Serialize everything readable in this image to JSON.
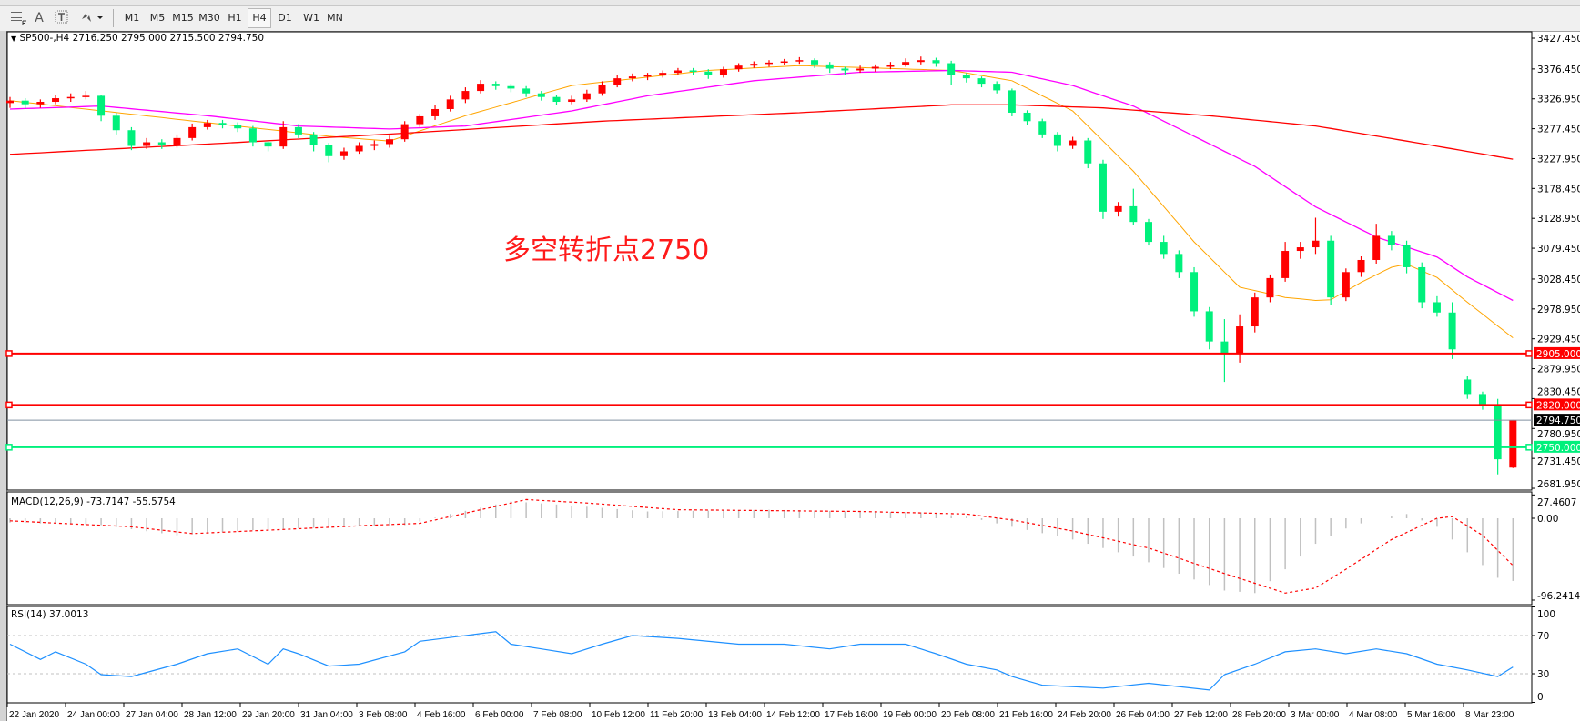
{
  "toolbar": {
    "icons": [
      "grid-icon",
      "text-icon",
      "text-label-icon",
      "arrows-icon"
    ],
    "text_tool": "A",
    "timeframes": [
      "M1",
      "M5",
      "M15",
      "M30",
      "H1",
      "H4",
      "D1",
      "W1",
      "MN"
    ],
    "active_timeframe": "H4"
  },
  "chart": {
    "header": "SP500-,H4  2716.250 2795.000 2715.500 2794.750",
    "annotation": "多空转折点2750",
    "annotation_color": "#ff1a1a",
    "bull_color": "#ff0000",
    "bear_color": "#00f07c",
    "price_axis": [
      "3427.450",
      "3376.450",
      "3326.950",
      "3277.450",
      "3227.950",
      "3178.450",
      "3128.950",
      "3079.450",
      "3028.450",
      "2978.950",
      "2929.450",
      "2879.950",
      "2830.450",
      "2780.950",
      "2731.450",
      "2681.950"
    ],
    "levels": [
      {
        "price": 2905.0,
        "label": "2905.000",
        "color": "#ff0000"
      },
      {
        "price": 2820.0,
        "label": "2820.000",
        "color": "#ff0000"
      },
      {
        "price": 2794.75,
        "label": "2794.750",
        "color": "#000000",
        "line_color": "#8090a0"
      },
      {
        "price": 2750.0,
        "label": "2750.000",
        "color": "#00f07c"
      }
    ],
    "time_axis": [
      "22 Jan 2020",
      "24 Jan 00:00",
      "27 Jan 04:00",
      "28 Jan 12:00",
      "29 Jan 20:00",
      "31 Jan 04:00",
      "3 Feb 08:00",
      "4 Feb 16:00",
      "6 Feb 00:00",
      "7 Feb 08:00",
      "10 Feb 12:00",
      "11 Feb 20:00",
      "13 Feb 04:00",
      "14 Feb 12:00",
      "17 Feb 16:00",
      "19 Feb 00:00",
      "20 Feb 08:00",
      "21 Feb 16:00",
      "24 Feb 20:00",
      "26 Feb 04:00",
      "27 Feb 12:00",
      "28 Feb 20:00",
      "3 Mar 00:00",
      "4 Mar 08:00",
      "5 Mar 16:00",
      "8 Mar 23:00"
    ]
  },
  "macd": {
    "label": "MACD(12,26,9) -73.7147 -55.5754",
    "axis": [
      "27.4607",
      "0.00",
      "-96.2414"
    ]
  },
  "rsi": {
    "label": "RSI(14) 37.0013",
    "axis": [
      "100",
      "70",
      "30",
      "0"
    ]
  },
  "chart_data": [
    {
      "type": "candlestick",
      "title": "SP500-,H4",
      "ylim": [
        2681.95,
        3427.45
      ],
      "ohlc": [
        [
          3320,
          3330,
          3312,
          3324
        ],
        [
          3324,
          3328,
          3310,
          3318
        ],
        [
          3318,
          3326,
          3312,
          3322
        ],
        [
          3322,
          3334,
          3318,
          3328
        ],
        [
          3328,
          3336,
          3322,
          3330
        ],
        [
          3330,
          3340,
          3326,
          3332
        ],
        [
          3332,
          3334,
          3290,
          3299
        ],
        [
          3299,
          3304,
          3268,
          3275
        ],
        [
          3275,
          3280,
          3242,
          3249
        ],
        [
          3249,
          3262,
          3244,
          3255
        ],
        [
          3255,
          3260,
          3244,
          3250
        ],
        [
          3250,
          3268,
          3246,
          3262
        ],
        [
          3262,
          3286,
          3258,
          3280
        ],
        [
          3280,
          3292,
          3276,
          3287
        ],
        [
          3287,
          3292,
          3278,
          3284
        ],
        [
          3284,
          3288,
          3272,
          3278
        ],
        [
          3278,
          3282,
          3248,
          3255
        ],
        [
          3255,
          3258,
          3240,
          3248
        ],
        [
          3248,
          3290,
          3244,
          3280
        ],
        [
          3280,
          3285,
          3262,
          3268
        ],
        [
          3268,
          3272,
          3240,
          3250
        ],
        [
          3250,
          3254,
          3222,
          3232
        ],
        [
          3232,
          3246,
          3226,
          3240
        ],
        [
          3240,
          3255,
          3236,
          3249
        ],
        [
          3249,
          3258,
          3242,
          3252
        ],
        [
          3252,
          3266,
          3246,
          3260
        ],
        [
          3260,
          3290,
          3256,
          3285
        ],
        [
          3285,
          3302,
          3280,
          3298
        ],
        [
          3298,
          3316,
          3292,
          3310
        ],
        [
          3310,
          3332,
          3306,
          3326
        ],
        [
          3326,
          3346,
          3320,
          3340
        ],
        [
          3340,
          3358,
          3336,
          3352
        ],
        [
          3352,
          3356,
          3342,
          3348
        ],
        [
          3348,
          3352,
          3338,
          3344
        ],
        [
          3344,
          3348,
          3330,
          3336
        ],
        [
          3336,
          3340,
          3324,
          3330
        ],
        [
          3330,
          3334,
          3316,
          3322
        ],
        [
          3322,
          3332,
          3318,
          3326
        ],
        [
          3326,
          3342,
          3322,
          3336
        ],
        [
          3336,
          3356,
          3332,
          3350
        ],
        [
          3350,
          3366,
          3346,
          3361
        ],
        [
          3361,
          3369,
          3356,
          3364
        ],
        [
          3364,
          3370,
          3358,
          3366
        ],
        [
          3366,
          3374,
          3362,
          3370
        ],
        [
          3370,
          3378,
          3366,
          3374
        ],
        [
          3374,
          3378,
          3366,
          3372
        ],
        [
          3372,
          3376,
          3360,
          3366
        ],
        [
          3366,
          3380,
          3362,
          3376
        ],
        [
          3376,
          3386,
          3372,
          3382
        ],
        [
          3382,
          3389,
          3378,
          3385
        ],
        [
          3385,
          3391,
          3380,
          3387
        ],
        [
          3387,
          3393,
          3383,
          3389
        ],
        [
          3389,
          3396,
          3385,
          3391
        ],
        [
          3391,
          3394,
          3378,
          3384
        ],
        [
          3384,
          3388,
          3370,
          3377
        ],
        [
          3377,
          3380,
          3366,
          3374
        ],
        [
          3374,
          3382,
          3370,
          3377
        ],
        [
          3377,
          3384,
          3372,
          3380
        ],
        [
          3380,
          3388,
          3376,
          3383
        ],
        [
          3383,
          3394,
          3380,
          3388
        ],
        [
          3388,
          3397,
          3384,
          3391
        ],
        [
          3391,
          3395,
          3380,
          3386
        ],
        [
          3386,
          3390,
          3350,
          3366
        ],
        [
          3366,
          3370,
          3354,
          3361
        ],
        [
          3361,
          3364,
          3346,
          3352
        ],
        [
          3352,
          3356,
          3336,
          3341
        ],
        [
          3341,
          3344,
          3298,
          3304
        ],
        [
          3304,
          3308,
          3284,
          3290
        ],
        [
          3290,
          3294,
          3262,
          3268
        ],
        [
          3268,
          3272,
          3240,
          3249
        ],
        [
          3249,
          3264,
          3244,
          3258
        ],
        [
          3258,
          3262,
          3212,
          3220
        ],
        [
          3220,
          3226,
          3128,
          3140
        ],
        [
          3140,
          3156,
          3132,
          3149
        ],
        [
          3149,
          3178,
          3118,
          3123
        ],
        [
          3123,
          3128,
          3084,
          3090
        ],
        [
          3090,
          3100,
          3062,
          3070
        ],
        [
          3070,
          3076,
          3030,
          3040
        ],
        [
          3040,
          3048,
          2966,
          2975
        ],
        [
          2975,
          2982,
          2912,
          2925
        ],
        [
          2925,
          2962,
          2858,
          2906
        ],
        [
          2906,
          2970,
          2890,
          2950
        ],
        [
          2950,
          3006,
          2940,
          2998
        ],
        [
          2998,
          3036,
          2990,
          3030
        ],
        [
          3030,
          3090,
          3024,
          3075
        ],
        [
          3075,
          3090,
          3062,
          3081
        ],
        [
          3081,
          3130,
          3070,
          3092
        ],
        [
          3092,
          3100,
          2985,
          2998
        ],
        [
          2998,
          3046,
          2992,
          3040
        ],
        [
          3040,
          3066,
          3032,
          3060
        ],
        [
          3060,
          3120,
          3054,
          3100
        ],
        [
          3100,
          3108,
          3076,
          3085
        ],
        [
          3085,
          3092,
          3038,
          3048
        ],
        [
          3048,
          3056,
          2980,
          2990
        ],
        [
          2990,
          3000,
          2966,
          2973
        ],
        [
          2973,
          2990,
          2896,
          2912
        ],
        [
          2862,
          2868,
          2830,
          2838
        ],
        [
          2838,
          2842,
          2812,
          2820
        ],
        [
          2820,
          2830,
          2705,
          2730
        ],
        [
          2716.25,
          2795,
          2715.5,
          2794.75
        ]
      ],
      "moving_averages": [
        {
          "color": "#ffa500",
          "points": [
            [
              0,
              3324
            ],
            [
              21,
              3265
            ],
            [
              25,
              3257
            ],
            [
              30,
              3299
            ],
            [
              37,
              3349
            ],
            [
              46,
              3374
            ],
            [
              52,
              3382
            ],
            [
              62,
              3374
            ],
            [
              66,
              3357
            ],
            [
              70,
              3307
            ],
            [
              74,
              3207
            ],
            [
              78,
              3090
            ],
            [
              81,
              3015
            ],
            [
              84,
              2998
            ],
            [
              86,
              2993
            ],
            [
              87,
              2994
            ],
            [
              89,
              3023
            ],
            [
              91,
              3048
            ],
            [
              92,
              3053
            ],
            [
              94,
              3031
            ],
            [
              96,
              2990
            ],
            [
              99,
              2931
            ]
          ]
        },
        {
          "color": "#ff00ff",
          "points": [
            [
              0,
              3310
            ],
            [
              6,
              3315
            ],
            [
              13,
              3299
            ],
            [
              19,
              3282
            ],
            [
              25,
              3277
            ],
            [
              30,
              3282
            ],
            [
              37,
              3307
            ],
            [
              42,
              3332
            ],
            [
              49,
              3357
            ],
            [
              56,
              3371
            ],
            [
              62,
              3374
            ],
            [
              66,
              3371
            ],
            [
              70,
              3349
            ],
            [
              74,
              3315
            ],
            [
              78,
              3265
            ],
            [
              82,
              3215
            ],
            [
              86,
              3148
            ],
            [
              90,
              3098
            ],
            [
              94,
              3065
            ],
            [
              96,
              3032
            ],
            [
              99,
              2993
            ]
          ]
        },
        {
          "color": "#ff0000",
          "points": [
            [
              0,
              3235
            ],
            [
              13,
              3252
            ],
            [
              26,
              3270
            ],
            [
              39,
              3290
            ],
            [
              52,
              3304
            ],
            [
              62,
              3317
            ],
            [
              66,
              3317
            ],
            [
              72,
              3312
            ],
            [
              79,
              3299
            ],
            [
              86,
              3282
            ],
            [
              92,
              3257
            ],
            [
              99,
              3227
            ]
          ]
        }
      ]
    },
    {
      "type": "bar",
      "title": "MACD(12,26,9)",
      "ylim": [
        -96.2414,
        27.4607
      ],
      "histogram_points": [
        [
          0,
          -5
        ],
        [
          6,
          -8
        ],
        [
          11,
          -20
        ],
        [
          16,
          -14
        ],
        [
          22,
          -10
        ],
        [
          26,
          -8
        ],
        [
          29,
          5
        ],
        [
          33,
          20
        ],
        [
          37,
          15
        ],
        [
          42,
          8
        ],
        [
          50,
          10
        ],
        [
          56,
          8
        ],
        [
          60,
          7
        ],
        [
          63,
          2
        ],
        [
          66,
          -10
        ],
        [
          70,
          -25
        ],
        [
          74,
          -45
        ],
        [
          78,
          -72
        ],
        [
          80,
          -85
        ],
        [
          82,
          -88
        ],
        [
          84,
          -60
        ],
        [
          86,
          -30
        ],
        [
          88,
          -12
        ],
        [
          90,
          0
        ],
        [
          92,
          5
        ],
        [
          94,
          -10
        ],
        [
          96,
          -40
        ],
        [
          98,
          -70
        ],
        [
          99,
          -73.7147
        ]
      ],
      "signal_points": [
        [
          0,
          -3
        ],
        [
          8,
          -10
        ],
        [
          12,
          -18
        ],
        [
          17,
          -14
        ],
        [
          24,
          -8
        ],
        [
          27,
          -6
        ],
        [
          31,
          10
        ],
        [
          34,
          22
        ],
        [
          38,
          18
        ],
        [
          44,
          10
        ],
        [
          56,
          8
        ],
        [
          63,
          5
        ],
        [
          66,
          -2
        ],
        [
          70,
          -15
        ],
        [
          75,
          -35
        ],
        [
          80,
          -65
        ],
        [
          84,
          -88
        ],
        [
          86,
          -82
        ],
        [
          88,
          -60
        ],
        [
          91,
          -25
        ],
        [
          94,
          0
        ],
        [
          95,
          2
        ],
        [
          97,
          -20
        ],
        [
          99,
          -55.5754
        ]
      ]
    },
    {
      "type": "line",
      "title": "RSI(14)",
      "ylim": [
        0,
        100
      ],
      "levels": [
        70,
        30
      ],
      "points": [
        [
          0,
          61
        ],
        [
          2,
          45
        ],
        [
          3,
          53
        ],
        [
          5,
          40
        ],
        [
          6,
          29
        ],
        [
          8,
          27
        ],
        [
          11,
          40
        ],
        [
          13,
          51
        ],
        [
          15,
          56
        ],
        [
          17,
          40
        ],
        [
          18,
          56
        ],
        [
          19,
          51
        ],
        [
          21,
          38
        ],
        [
          23,
          40
        ],
        [
          26,
          53
        ],
        [
          27,
          64
        ],
        [
          31,
          72
        ],
        [
          32,
          74
        ],
        [
          33,
          61
        ],
        [
          35,
          56
        ],
        [
          37,
          51
        ],
        [
          39,
          61
        ],
        [
          41,
          70
        ],
        [
          44,
          67
        ],
        [
          48,
          61
        ],
        [
          51,
          61
        ],
        [
          54,
          56
        ],
        [
          56,
          61
        ],
        [
          59,
          61
        ],
        [
          61,
          51
        ],
        [
          63,
          40
        ],
        [
          65,
          34
        ],
        [
          66,
          27
        ],
        [
          68,
          18
        ],
        [
          72,
          15
        ],
        [
          75,
          20
        ],
        [
          79,
          13
        ],
        [
          80,
          29
        ],
        [
          82,
          40
        ],
        [
          84,
          53
        ],
        [
          86,
          56
        ],
        [
          88,
          51
        ],
        [
          90,
          56
        ],
        [
          92,
          51
        ],
        [
          94,
          40
        ],
        [
          96,
          34
        ],
        [
          98,
          27
        ],
        [
          99,
          37.0013
        ]
      ]
    }
  ]
}
